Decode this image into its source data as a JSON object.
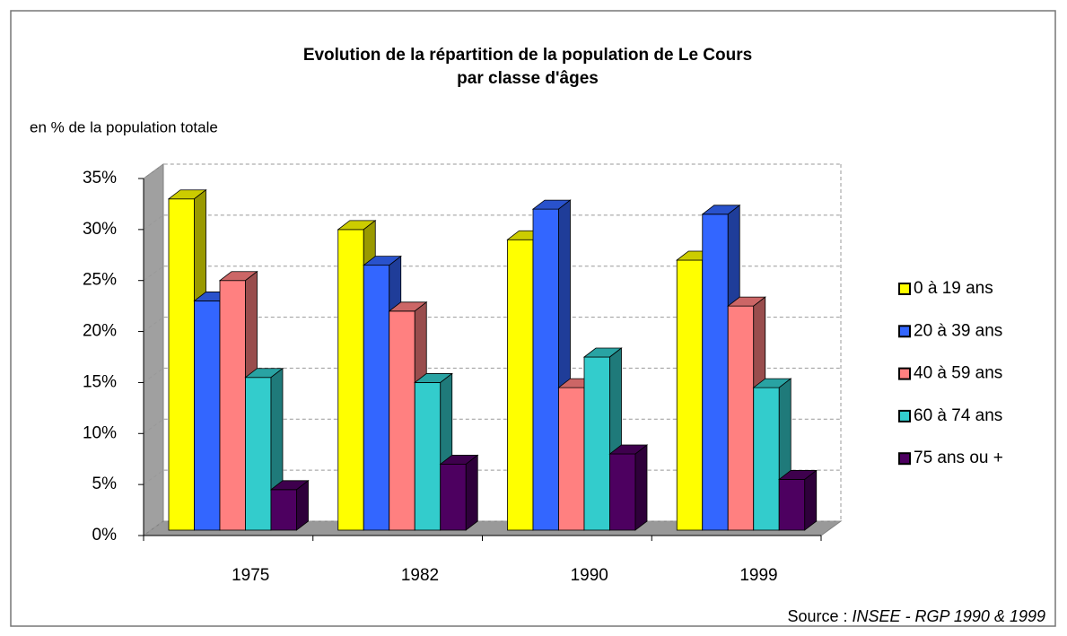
{
  "chart_data": {
    "type": "bar3d",
    "title": [
      "Evolution de la répartition de la population de Le Cours",
      "par classe d'âges"
    ],
    "y_axis_label": "en % de la population totale",
    "source_label": "Source :",
    "source": "INSEE - RGP 1990 & 1999",
    "categories": [
      "1975",
      "1982",
      "1990",
      "1999"
    ],
    "series": [
      {
        "name": "0 à 19 ans",
        "color": "#ffff00",
        "values": [
          33,
          30,
          29,
          27
        ]
      },
      {
        "name": "20 à 39 ans",
        "color": "#3366ff",
        "values": [
          23,
          26.5,
          32,
          31.5
        ]
      },
      {
        "name": "40 à 59 ans",
        "color": "#ff8080",
        "values": [
          25,
          22,
          14.5,
          22.5
        ]
      },
      {
        "name": "60 à 74 ans",
        "color": "#33cccc",
        "values": [
          15.5,
          15,
          17.5,
          14.5
        ]
      },
      {
        "name": "75 ans ou +",
        "color": "#4d0060",
        "values": [
          4.5,
          7,
          8,
          5.5
        ]
      }
    ],
    "ylim": [
      0,
      35
    ],
    "yticks": [
      {
        "value": 0,
        "label": "0%"
      },
      {
        "value": 5,
        "label": "5%"
      },
      {
        "value": 10,
        "label": "10%"
      },
      {
        "value": 15,
        "label": "15%"
      },
      {
        "value": 20,
        "label": "20%"
      },
      {
        "value": 25,
        "label": "25%"
      },
      {
        "value": 30,
        "label": "30%"
      },
      {
        "value": 35,
        "label": "35%"
      }
    ],
    "grid": true,
    "legend": "right"
  }
}
